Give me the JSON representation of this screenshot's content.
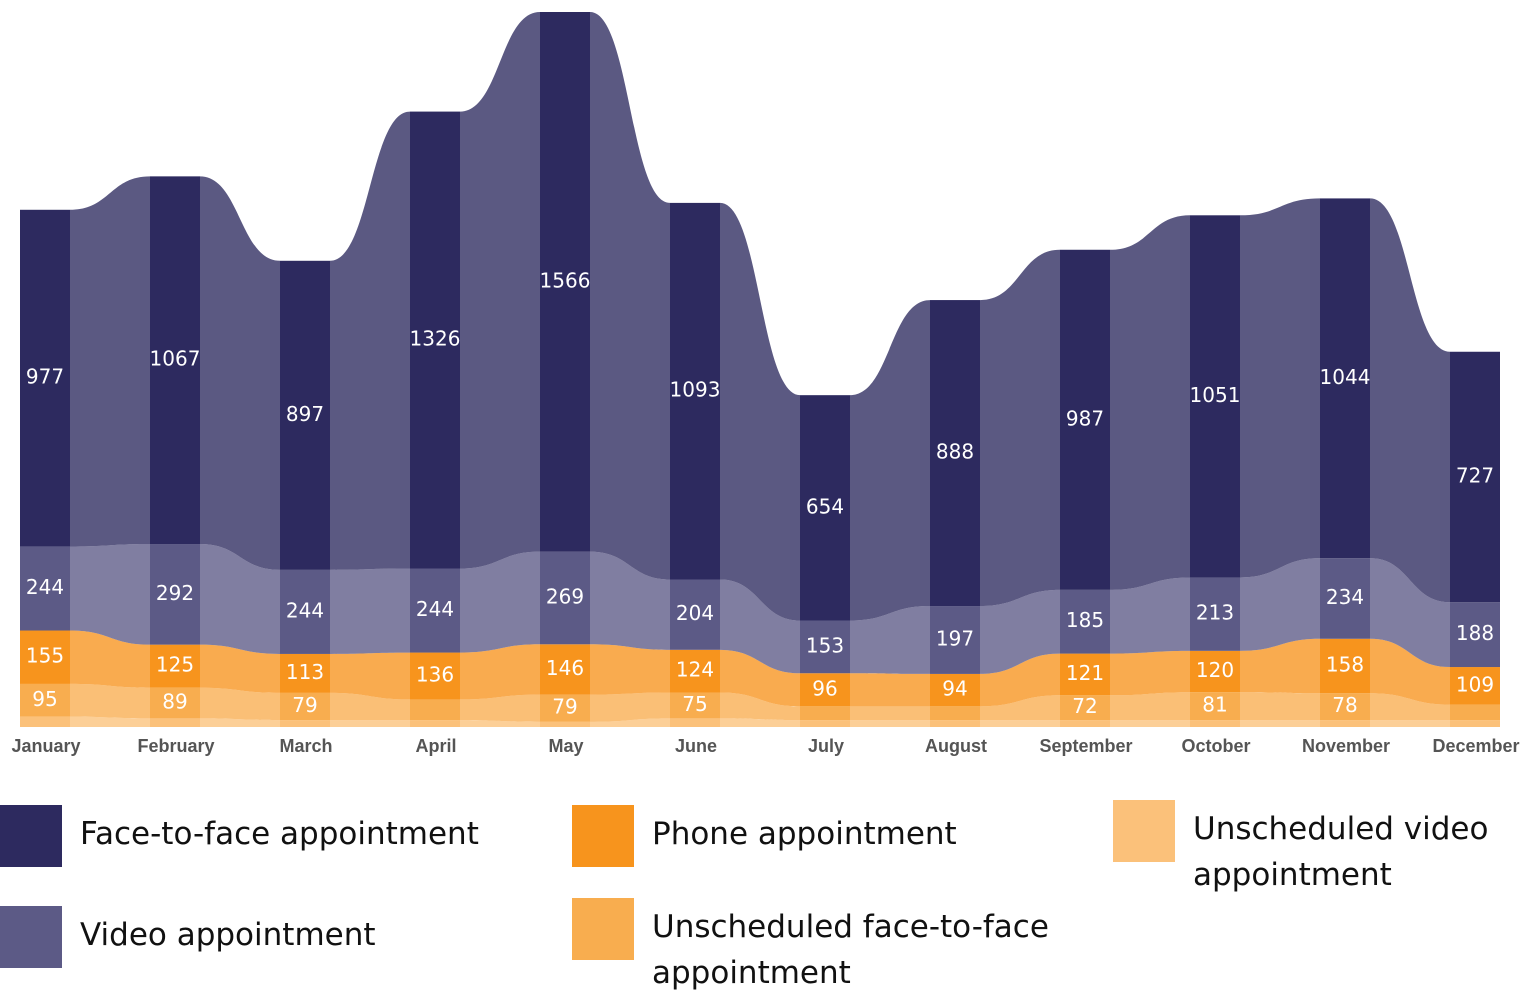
{
  "chart_data": {
    "type": "ribbon",
    "categories": [
      "January",
      "February",
      "March",
      "April",
      "May",
      "June",
      "July",
      "August",
      "September",
      "October",
      "November",
      "December"
    ],
    "series": [
      {
        "name": "Face-to-face appointment",
        "color": "#2d2a5f",
        "values": [
          977,
          1067,
          897,
          1326,
          1566,
          1093,
          654,
          888,
          987,
          1051,
          1044,
          727
        ],
        "value_labels": [
          "977",
          "1067",
          "897",
          "1326",
          "1566",
          "1093",
          "654",
          "888",
          "987",
          "1051",
          "1044",
          "727"
        ]
      },
      {
        "name": "Video appointment",
        "color": "#5c5a86",
        "values": [
          244,
          292,
          244,
          244,
          269,
          204,
          153,
          197,
          185,
          213,
          234,
          188
        ],
        "value_labels": [
          "244",
          "292",
          "244",
          "244",
          "269",
          "204",
          "153",
          "197",
          "185",
          "213",
          "234",
          "188"
        ]
      },
      {
        "name": "Phone appointment",
        "color": "#f7941d",
        "values": [
          155,
          125,
          113,
          136,
          146,
          124,
          96,
          94,
          121,
          120,
          158,
          109
        ],
        "value_labels": [
          "155",
          "125",
          "113",
          "136",
          "146",
          "124",
          "96",
          "94",
          "121",
          "120",
          "158",
          "109"
        ]
      },
      {
        "name": "Unscheduled face-to-face appointment",
        "color": "#f8ad4f",
        "values": [
          95,
          89,
          79,
          60,
          79,
          75,
          40,
          40,
          72,
          81,
          78,
          45
        ],
        "value_labels": [
          "95",
          "89",
          "79",
          null,
          "79",
          "75",
          null,
          null,
          "72",
          "81",
          "78",
          null
        ]
      },
      {
        "name": "Unscheduled video appointment",
        "color": "#fbc17a",
        "values": [
          30,
          25,
          20,
          20,
          15,
          25,
          20,
          20,
          20,
          20,
          20,
          20
        ],
        "value_labels": [
          null,
          null,
          null,
          null,
          null,
          null,
          null,
          null,
          null,
          null,
          null,
          null
        ]
      }
    ]
  }
}
